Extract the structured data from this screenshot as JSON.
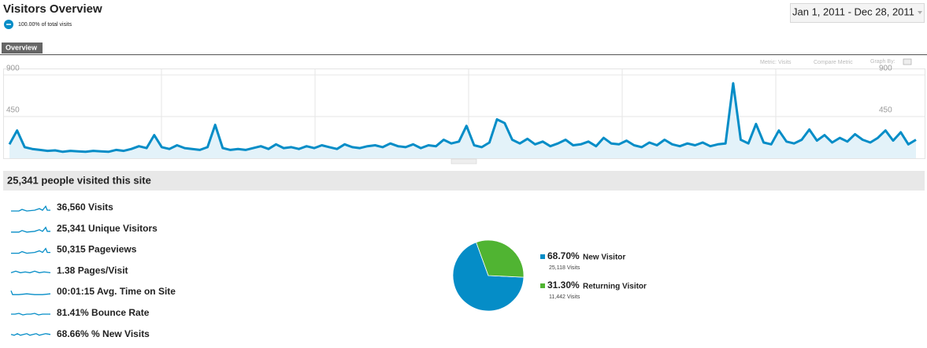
{
  "header": {
    "title": "Visitors Overview",
    "segment": "100.00% of total visits",
    "date_range": "Jan 1, 2011 - Dec 28, 2011",
    "tab": "Overview"
  },
  "chart_controls": {
    "metric": "Metric: Visits",
    "compare": "Compare Metric",
    "graph_by": "Graph By:"
  },
  "chart_data": [
    {
      "type": "line",
      "color": "#058dc7",
      "area_color": "#e3f2f9",
      "grid": true,
      "ylim": [
        0,
        960
      ],
      "yticks": [
        450,
        900
      ],
      "series": [
        {
          "color": "#058dc7",
          "values": [
            150,
            300,
            120,
            100,
            90,
            80,
            85,
            70,
            80,
            75,
            70,
            80,
            75,
            70,
            90,
            80,
            100,
            130,
            110,
            250,
            120,
            100,
            140,
            110,
            100,
            90,
            120,
            360,
            110,
            90,
            100,
            90,
            110,
            130,
            100,
            150,
            110,
            120,
            100,
            130,
            110,
            140,
            120,
            100,
            150,
            120,
            110,
            130,
            140,
            120,
            160,
            130,
            120,
            150,
            110,
            140,
            130,
            200,
            160,
            180,
            350,
            140,
            120,
            170,
            420,
            380,
            200,
            160,
            210,
            150,
            180,
            130,
            160,
            200,
            140,
            150,
            180,
            130,
            220,
            160,
            150,
            190,
            140,
            120,
            170,
            140,
            200,
            150,
            130,
            160,
            140,
            170,
            130,
            150,
            160,
            810,
            200,
            160,
            370,
            170,
            150,
            300,
            180,
            160,
            200,
            310,
            190,
            250,
            170,
            220,
            180,
            260,
            200,
            170,
            220,
            300,
            190,
            280,
            150,
            200
          ]
        }
      ]
    },
    {
      "type": "pie",
      "categories": [
        "New Visitor",
        "Returning Visitor"
      ],
      "values": [
        68.7,
        31.3
      ],
      "value_labels": [
        "68.70%",
        "31.30%"
      ],
      "colors": [
        "#058dc7",
        "#50b432"
      ],
      "visits_labels": [
        "25,118 Visits",
        "11,442 Visits"
      ]
    }
  ],
  "summary": "25,341 people visited this site",
  "metrics": [
    {
      "value": "36,560",
      "label": "Visits"
    },
    {
      "value": "25,341",
      "label": "Unique Visitors"
    },
    {
      "value": "50,315",
      "label": "Pageviews"
    },
    {
      "value": "1.38",
      "label": "Pages/Visit"
    },
    {
      "value": "00:01:15",
      "label": "Avg. Time on Site"
    },
    {
      "value": "81.41%",
      "label": "Bounce Rate"
    },
    {
      "value": "68.66%",
      "label": "% New Visits"
    }
  ]
}
